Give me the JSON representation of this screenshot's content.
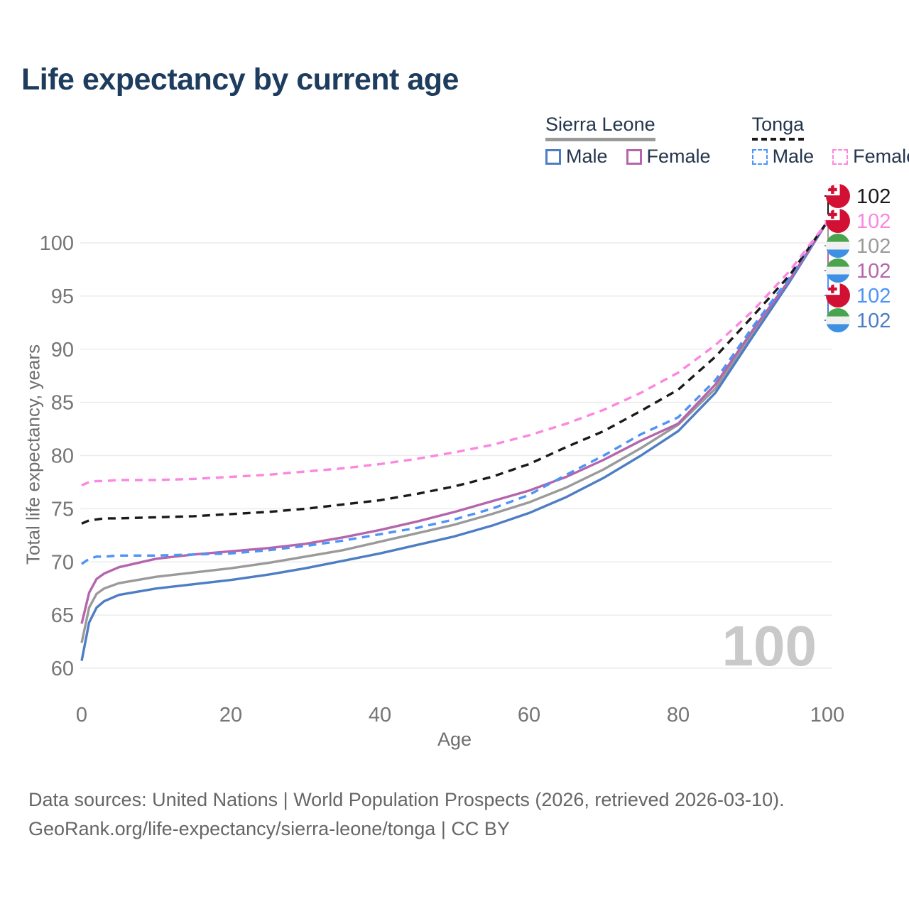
{
  "title": "Life expectancy by current age",
  "legend": {
    "groups": [
      {
        "name": "Sierra Leone",
        "line_style": "solid",
        "underline_color": "#9a9a9a",
        "items": [
          {
            "label": "Male",
            "color": "#4d7dc4"
          },
          {
            "label": "Female",
            "color": "#b565ab"
          }
        ]
      },
      {
        "name": "Tonga",
        "line_style": "dashed",
        "underline_color": "#1a1a1a",
        "items": [
          {
            "label": "Male",
            "color": "#4d94f7"
          },
          {
            "label": "Female",
            "color": "#fb87e0"
          }
        ]
      }
    ]
  },
  "chart_data": {
    "type": "line",
    "title": "Life expectancy by current age",
    "xlabel": "Age",
    "ylabel": "Total life expectancy, years",
    "xlim": [
      0,
      100
    ],
    "ylim": [
      58.5,
      103
    ],
    "xticks": [
      0,
      20,
      40,
      60,
      80,
      100
    ],
    "yticks": [
      60,
      65,
      70,
      75,
      80,
      85,
      90,
      95,
      100
    ],
    "grid": "horizontal",
    "legend_position": "top-right",
    "x": [
      0,
      1,
      2,
      3,
      5,
      10,
      15,
      20,
      25,
      30,
      35,
      40,
      45,
      50,
      55,
      60,
      65,
      70,
      75,
      80,
      85,
      90,
      95,
      100
    ],
    "series": [
      {
        "name": "Sierra Leone Total",
        "country": "Sierra Leone",
        "sex": "Both",
        "color": "#9a9a9a",
        "dash": false,
        "values": [
          62.4,
          65.7,
          67.0,
          67.5,
          68.0,
          68.6,
          69.0,
          69.4,
          69.9,
          70.5,
          71.1,
          71.9,
          72.7,
          73.5,
          74.5,
          75.6,
          77.0,
          78.7,
          80.7,
          82.9,
          86.3,
          91.5,
          96.5,
          102
        ]
      },
      {
        "name": "Sierra Leone Male",
        "country": "Sierra Leone",
        "sex": "Male",
        "color": "#4d7dc4",
        "dash": false,
        "values": [
          60.7,
          64.3,
          65.7,
          66.3,
          66.9,
          67.5,
          67.9,
          68.3,
          68.8,
          69.4,
          70.1,
          70.8,
          71.6,
          72.4,
          73.4,
          74.6,
          76.1,
          77.9,
          80.0,
          82.3,
          85.9,
          91.2,
          96.4,
          102
        ]
      },
      {
        "name": "Sierra Leone Female",
        "country": "Sierra Leone",
        "sex": "Female",
        "color": "#b565ab",
        "dash": false,
        "values": [
          64.2,
          67.1,
          68.4,
          68.9,
          69.5,
          70.3,
          70.7,
          71.0,
          71.3,
          71.7,
          72.3,
          73.0,
          73.8,
          74.7,
          75.7,
          76.7,
          78.0,
          79.6,
          81.4,
          83.0,
          86.7,
          91.8,
          96.6,
          102
        ]
      },
      {
        "name": "Tonga Male",
        "country": "Tonga",
        "sex": "Male",
        "color": "#4d94f7",
        "dash": true,
        "values": [
          69.8,
          70.3,
          70.5,
          70.5,
          70.6,
          70.6,
          70.7,
          70.8,
          71.1,
          71.5,
          72.0,
          72.6,
          73.2,
          74.0,
          75.0,
          76.3,
          78.2,
          80.0,
          82.0,
          83.6,
          87.1,
          92.1,
          96.8,
          102
        ]
      },
      {
        "name": "Tonga Total",
        "country": "Tonga",
        "sex": "Both",
        "color": "#1a1a1a",
        "dash": true,
        "values": [
          73.6,
          73.9,
          74.0,
          74.1,
          74.1,
          74.2,
          74.3,
          74.5,
          74.7,
          75.0,
          75.4,
          75.8,
          76.4,
          77.1,
          78.0,
          79.2,
          80.8,
          82.3,
          84.2,
          86.2,
          89.3,
          93.1,
          97.0,
          102
        ]
      },
      {
        "name": "Tonga Female",
        "country": "Tonga",
        "sex": "Female",
        "color": "#fb87e0",
        "dash": true,
        "values": [
          77.2,
          77.5,
          77.6,
          77.6,
          77.7,
          77.7,
          77.8,
          78.0,
          78.2,
          78.5,
          78.8,
          79.2,
          79.7,
          80.3,
          81.0,
          81.9,
          83.0,
          84.3,
          85.9,
          87.8,
          90.4,
          93.6,
          97.4,
          102
        ]
      }
    ],
    "end_labels": [
      {
        "text": "102",
        "color": "#1a1a1a",
        "flag": "tonga",
        "series": "Tonga Total"
      },
      {
        "text": "102",
        "color": "#fb87e0",
        "flag": "tonga",
        "series": "Tonga Female"
      },
      {
        "text": "102",
        "color": "#9a9a9a",
        "flag": "sierra-leone",
        "series": "Sierra Leone Total"
      },
      {
        "text": "102",
        "color": "#b565ab",
        "flag": "sierra-leone",
        "series": "Sierra Leone Female"
      },
      {
        "text": "102",
        "color": "#4d94f7",
        "flag": "tonga",
        "series": "Tonga Male"
      },
      {
        "text": "102",
        "color": "#4d7dc4",
        "flag": "sierra-leone",
        "series": "Sierra Leone Male"
      }
    ]
  },
  "watermark": "100",
  "footer": {
    "line1": "Data sources: United Nations | World Population Prospects (2026, retrieved 2026-03-10).",
    "line2": "GeoRank.org/life-expectancy/sierra-leone/tonga | CC BY"
  }
}
